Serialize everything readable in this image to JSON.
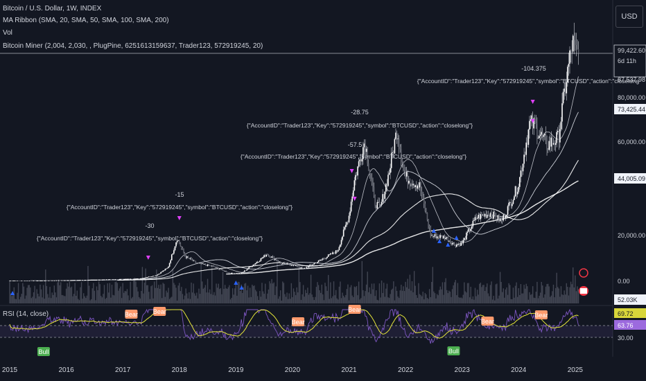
{
  "header": {
    "title": "Bitcoin / U.S. Dollar, 1W, INDEX",
    "ma_ribbon": "MA Ribbon (SMA, 20, SMA, 50, SMA, 100, SMA, 200)",
    "vol": "Vol",
    "miner": "Bitcoin Miner (2,004, 2,030, , PlugPine, 6251613159637, Trader123, 572919245, 20)",
    "currency_button": "USD"
  },
  "chart_data": {
    "type": "candlestick",
    "x_ticks": [
      "2015",
      "2016",
      "2017",
      "2018",
      "2019",
      "2020",
      "2021",
      "2022",
      "2023",
      "2024",
      "2025"
    ],
    "y_ticks": [
      "80,000.00",
      "60,000.00",
      "20,000.00",
      "0.00"
    ],
    "price_labels": [
      {
        "text": "99,422.60",
        "kind": "last"
      },
      {
        "text": "6d 11h",
        "kind": "countdown"
      },
      {
        "text": "87,537.98",
        "kind": "line"
      },
      {
        "text": "73,425.44",
        "kind": "ma"
      },
      {
        "text": "44,005.09",
        "kind": "ma"
      },
      {
        "text": "52.03K",
        "kind": "volume"
      }
    ],
    "price_path": [
      [
        2015.0,
        300
      ],
      [
        2015.5,
        250
      ],
      [
        2016.0,
        420
      ],
      [
        2016.5,
        650
      ],
      [
        2017.0,
        950
      ],
      [
        2017.3,
        1200
      ],
      [
        2017.6,
        2700
      ],
      [
        2017.8,
        6000
      ],
      [
        2017.96,
        19000
      ],
      [
        2018.1,
        11000
      ],
      [
        2018.3,
        8000
      ],
      [
        2018.6,
        6500
      ],
      [
        2018.9,
        3500
      ],
      [
        2019.1,
        3600
      ],
      [
        2019.4,
        9000
      ],
      [
        2019.55,
        12000
      ],
      [
        2019.8,
        8000
      ],
      [
        2020.0,
        7200
      ],
      [
        2020.2,
        5500
      ],
      [
        2020.5,
        9300
      ],
      [
        2020.8,
        13500
      ],
      [
        2021.0,
        29000
      ],
      [
        2021.1,
        45000
      ],
      [
        2021.28,
        62000
      ],
      [
        2021.45,
        35000
      ],
      [
        2021.55,
        32000
      ],
      [
        2021.7,
        47000
      ],
      [
        2021.85,
        67000
      ],
      [
        2022.0,
        46000
      ],
      [
        2022.25,
        42000
      ],
      [
        2022.45,
        20000
      ],
      [
        2022.7,
        19500
      ],
      [
        2022.87,
        16000
      ],
      [
        2023.0,
        16800
      ],
      [
        2023.25,
        28000
      ],
      [
        2023.5,
        30000
      ],
      [
        2023.7,
        26500
      ],
      [
        2023.9,
        37000
      ],
      [
        2024.0,
        43000
      ],
      [
        2024.2,
        70000
      ],
      [
        2024.3,
        68000
      ],
      [
        2024.5,
        60000
      ],
      [
        2024.7,
        63000
      ],
      [
        2024.85,
        90000
      ],
      [
        2024.95,
        105000
      ],
      [
        2025.05,
        99422
      ]
    ],
    "annotations": [
      {
        "value": "-30",
        "label": "{\"AccountID\":\"Trader123\",\"Key\":\"572919245\",\"symbol\":\"BTCUSD\",\"action\":\"closelong\"}"
      },
      {
        "value": "-15",
        "label": "{\"AccountID\":\"Trader123\",\"Key\":\"572919245\",\"symbol\":\"BTCUSD\",\"action\":\"closelong\"}"
      },
      {
        "value": "-28.75",
        "label": "{\"AccountID\":\"Trader123\",\"Key\":\"572919245\",\"symbol\":\"BTCUSD\",\"action\":\"closelong\"}"
      },
      {
        "value": "-57.5",
        "label": "{\"AccountID\":\"Trader123\",\"Key\":\"572919245\",\"symbol\":\"BTCUSD\",\"action\":\"closelong\"}"
      },
      {
        "value": "-104.375",
        "label": "{\"AccountID\":\"Trader123\",\"Key\":\"572919245\",\"symbol\":\"BTCUSD\",\"action\":\"closelong"
      }
    ],
    "rsi": {
      "label": "RSI (14, close)",
      "value_labels": [
        "69.72",
        "63.76",
        "30.00"
      ],
      "signals": [
        "Bear",
        "Bear",
        "Bear",
        "Bear",
        "Bear",
        "Bear",
        "Bull",
        "Bull"
      ]
    }
  }
}
